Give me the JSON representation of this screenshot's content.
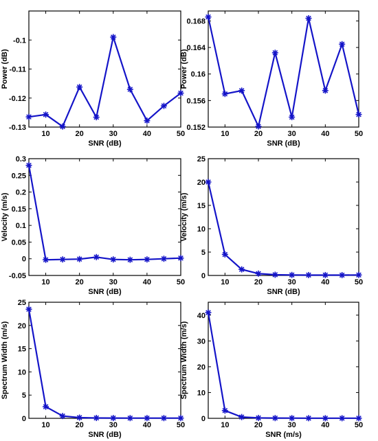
{
  "colors": {
    "series": "#1414c8",
    "axes": "#000000",
    "background": "#ffffff"
  },
  "chart_data": [
    {
      "type": "line",
      "xlabel": "SNR (dB)",
      "ylabel": "Power (dB)",
      "xlim": [
        5,
        50
      ],
      "ylim": [
        -0.13,
        -0.09
      ],
      "xticks": [
        10,
        20,
        30,
        40,
        50
      ],
      "xtick_labels": [
        "10",
        "20",
        "30",
        "40",
        "50"
      ],
      "yticks": [
        -0.13,
        -0.12,
        -0.11,
        -0.1
      ],
      "ytick_labels": [
        "-0.13",
        "-0.12",
        "-0.11",
        "-0.1"
      ],
      "series": [
        {
          "marker": "asterisk",
          "x": [
            5,
            10,
            15,
            20,
            25,
            30,
            35,
            40,
            45,
            50
          ],
          "values": [
            -0.1265,
            -0.1257,
            -0.1298,
            -0.1162,
            -0.1266,
            -0.099,
            -0.117,
            -0.1278,
            -0.1227,
            -0.1183
          ]
        }
      ]
    },
    {
      "type": "line",
      "xlabel": "SNR (dB)",
      "ylabel": "Power (dB)",
      "xlim": [
        5,
        50
      ],
      "ylim": [
        0.152,
        0.1695
      ],
      "xticks": [
        10,
        20,
        30,
        40,
        50
      ],
      "xtick_labels": [
        "10",
        "20",
        "30",
        "40",
        "50"
      ],
      "yticks": [
        0.152,
        0.156,
        0.16,
        0.164,
        0.168
      ],
      "ytick_labels": [
        "0.152",
        "0.156",
        "0.16",
        "0.164",
        "0.168"
      ],
      "series": [
        {
          "marker": "asterisk",
          "x": [
            5,
            10,
            15,
            20,
            25,
            30,
            35,
            40,
            45,
            50
          ],
          "values": [
            0.1686,
            0.157,
            0.1575,
            0.1521,
            0.1632,
            0.1535,
            0.1684,
            0.1575,
            0.1645,
            0.1539
          ]
        }
      ]
    },
    {
      "type": "line",
      "xlabel": "SNR (dB)",
      "ylabel": "Velocity (m/s)",
      "xlim": [
        5,
        50
      ],
      "ylim": [
        -0.05,
        0.3
      ],
      "xticks": [
        10,
        20,
        30,
        40,
        50
      ],
      "xtick_labels": [
        "10",
        "20",
        "30",
        "40",
        "50"
      ],
      "yticks": [
        -0.05,
        0,
        0.05,
        0.1,
        0.15,
        0.2,
        0.25,
        0.3
      ],
      "ytick_labels": [
        "-0.05",
        "0",
        "0.05",
        "0.1",
        "0.15",
        "0.2",
        "0.25",
        "0.3"
      ],
      "series": [
        {
          "marker": "asterisk",
          "x": [
            5,
            10,
            15,
            20,
            25,
            30,
            35,
            40,
            45,
            50
          ],
          "values": [
            0.28,
            -0.003,
            -0.002,
            -0.001,
            0.005,
            -0.002,
            -0.003,
            -0.002,
            0.0,
            0.002
          ]
        }
      ]
    },
    {
      "type": "line",
      "xlabel": "SNR (dB)",
      "ylabel": "Velocity (m/s)",
      "xlim": [
        5,
        50
      ],
      "ylim": [
        0,
        25
      ],
      "xticks": [
        10,
        20,
        30,
        40,
        50
      ],
      "xtick_labels": [
        "10",
        "20",
        "30",
        "40",
        "50"
      ],
      "yticks": [
        0,
        5,
        10,
        15,
        20,
        25
      ],
      "ytick_labels": [
        "0",
        "5",
        "10",
        "15",
        "20",
        "25"
      ],
      "series": [
        {
          "marker": "asterisk",
          "x": [
            5,
            10,
            15,
            20,
            25,
            30,
            35,
            40,
            45,
            50
          ],
          "values": [
            20,
            4.5,
            1.3,
            0.4,
            0.15,
            0.1,
            0.08,
            0.08,
            0.07,
            0.1
          ]
        }
      ]
    },
    {
      "type": "line",
      "xlabel": "SNR (dB)",
      "ylabel": "Spectrum Width (m/s)",
      "xlim": [
        5,
        50
      ],
      "ylim": [
        0,
        25
      ],
      "xticks": [
        10,
        20,
        30,
        40,
        50
      ],
      "xtick_labels": [
        "10",
        "20",
        "30",
        "40",
        "50"
      ],
      "yticks": [
        0,
        5,
        10,
        15,
        20,
        25
      ],
      "ytick_labels": [
        "0",
        "5",
        "10",
        "15",
        "20",
        "25"
      ],
      "series": [
        {
          "marker": "asterisk",
          "x": [
            5,
            10,
            15,
            20,
            25,
            30,
            35,
            40,
            45,
            50
          ],
          "values": [
            23.5,
            2.5,
            0.5,
            0.15,
            0.08,
            0.06,
            0.05,
            0.05,
            0.05,
            0.05
          ]
        }
      ]
    },
    {
      "type": "line",
      "xlabel": "SNR (m/s)",
      "ylabel": "Spectrum Width (m/s)",
      "xlim": [
        5,
        50
      ],
      "ylim": [
        0,
        45
      ],
      "xticks": [
        10,
        20,
        30,
        40,
        50
      ],
      "xtick_labels": [
        "10",
        "20",
        "30",
        "40",
        "50"
      ],
      "yticks": [
        0,
        10,
        20,
        30,
        40
      ],
      "ytick_labels": [
        "0",
        "10",
        "20",
        "30",
        "40"
      ],
      "series": [
        {
          "marker": "asterisk",
          "x": [
            5,
            10,
            15,
            20,
            25,
            30,
            35,
            40,
            45,
            50
          ],
          "values": [
            41,
            3,
            0.5,
            0.15,
            0.1,
            0.08,
            0.06,
            0.05,
            0.05,
            0.05
          ]
        }
      ]
    }
  ]
}
